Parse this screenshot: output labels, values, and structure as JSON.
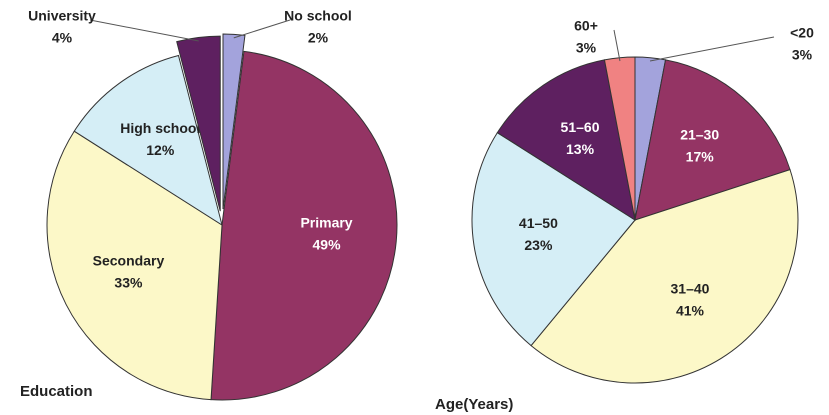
{
  "chart_data": [
    {
      "type": "pie",
      "title": "Education",
      "categories": [
        "No school",
        "Primary",
        "Secondary",
        "High school",
        "University"
      ],
      "values": [
        2,
        49,
        33,
        12,
        4
      ],
      "value_labels": [
        "2%",
        "49%",
        "33%",
        "12%",
        "4%"
      ],
      "colors": [
        "#a3a3dc",
        "#943464",
        "#fcf8c8",
        "#d5eef6",
        "#5e2060"
      ]
    },
    {
      "type": "pie",
      "title": "Age(Years)",
      "categories": [
        "<20",
        "21–30",
        "31–40",
        "41–50",
        "51–60",
        "60+"
      ],
      "values": [
        3,
        17,
        41,
        23,
        13,
        3
      ],
      "value_labels": [
        "3%",
        "17%",
        "41%",
        "23%",
        "13%",
        "3%"
      ],
      "colors": [
        "#a3a3dc",
        "#943464",
        "#fcf8c8",
        "#d5eef6",
        "#5e2060",
        "#f08282"
      ]
    }
  ]
}
